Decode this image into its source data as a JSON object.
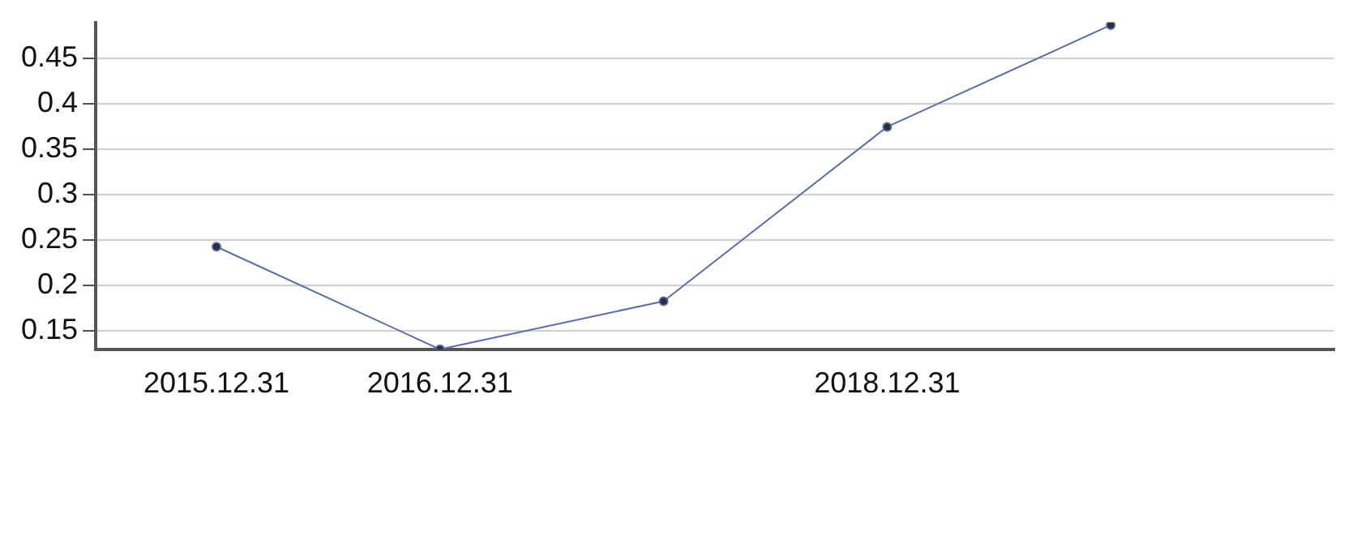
{
  "chart_data": {
    "type": "line",
    "categories": [
      "2015.12.31",
      "2016.12.31",
      null,
      "2018.12.31",
      null
    ],
    "series": [
      {
        "color": "#5a6ea6",
        "values": [
          0.243,
          0.13,
          0.183,
          0.375,
          0.487
        ]
      }
    ],
    "ylim": [
      0.13,
      0.49
    ],
    "yticks": [
      0.15,
      0.2,
      0.25,
      0.3,
      0.35,
      0.4,
      0.45
    ],
    "grid": "y",
    "marker": "circle",
    "line_style": "solid",
    "legend": false
  }
}
